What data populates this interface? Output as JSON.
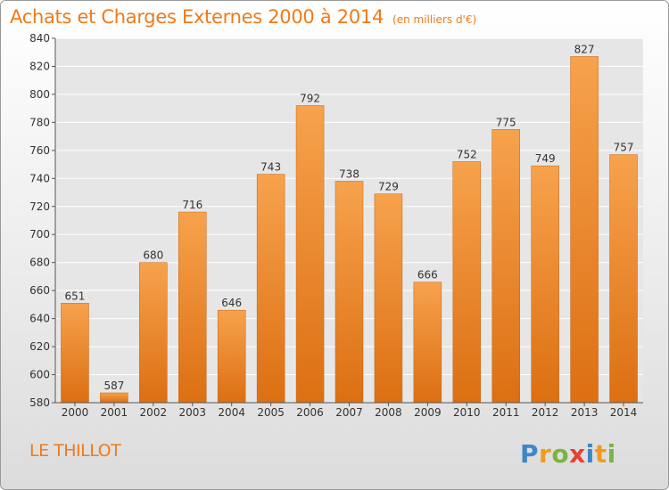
{
  "title": "Achats et Charges Externes 2000 à 2014",
  "unit_note": "(en milliers d'€)",
  "commune": "LE THILLOT",
  "brand": "Proxiti",
  "colors": {
    "accent": "#f07a1a",
    "bar_light": "#f7a24d",
    "bar_dark": "#dc6f12",
    "grid": "#ffffff",
    "axis_text": "#333333"
  },
  "chart_data": {
    "type": "bar",
    "title": "Achats et Charges Externes 2000 à 2014",
    "subtitle": "(en milliers d'€)",
    "categories": [
      "2000",
      "2001",
      "2002",
      "2003",
      "2004",
      "2005",
      "2006",
      "2007",
      "2008",
      "2009",
      "2010",
      "2011",
      "2012",
      "2013",
      "2014"
    ],
    "values": [
      651,
      587,
      680,
      716,
      646,
      743,
      792,
      738,
      729,
      666,
      752,
      775,
      749,
      827,
      757
    ],
    "ylim": [
      580,
      840
    ],
    "yticks": [
      580,
      600,
      620,
      640,
      660,
      680,
      700,
      720,
      740,
      760,
      780,
      800,
      820,
      840
    ],
    "xlabel": "",
    "ylabel": "",
    "grid": true,
    "data_labels": true
  }
}
